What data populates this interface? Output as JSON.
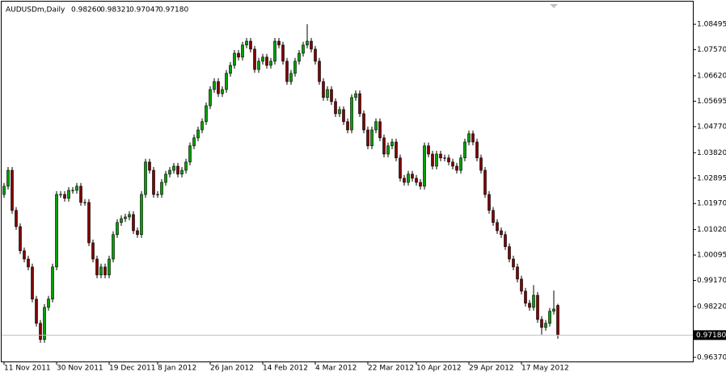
{
  "chart_data": {
    "type": "candlestick",
    "symbol": "AUDUSDm,Daily",
    "header_labels": [
      "0.98260",
      "0.98321",
      "0.97047",
      "0.97180"
    ],
    "up_color": "#00a000",
    "down_color": "#7f0000",
    "wick_color": "#000000",
    "ylim": [
      0.9622,
      1.0935
    ],
    "yticks": [
      1.08495,
      {
        "value": 1.0757,
        "label": "1.07570"
      },
      {
        "value": 1.0662,
        "label": "1.06620"
      },
      1.05695,
      {
        "value": 1.0477,
        "label": "1.04770"
      },
      {
        "value": 1.0382,
        "label": "1.03820"
      },
      1.02895,
      {
        "value": 1.0197,
        "label": "1.01970"
      },
      {
        "value": 1.0102,
        "label": "1.01020"
      },
      1.00095,
      {
        "value": 0.9917,
        "label": "0.99170"
      },
      {
        "value": 0.9822,
        "label": "0.98220"
      },
      {
        "value": 0.9637,
        "label": "0.96370"
      }
    ],
    "categories": [
      "11 Nov 2011",
      null,
      null,
      null,
      null,
      null,
      null,
      null,
      null,
      null,
      null,
      null,
      null,
      "30 Nov 2011",
      null,
      null,
      null,
      null,
      null,
      null,
      null,
      null,
      null,
      null,
      null,
      null,
      "19 Dec 2011",
      null,
      null,
      null,
      null,
      null,
      null,
      null,
      null,
      null,
      null,
      null,
      "8 Jan 2012",
      null,
      null,
      null,
      null,
      null,
      null,
      null,
      null,
      null,
      null,
      null,
      null,
      "26 Jan 2012",
      null,
      null,
      null,
      null,
      null,
      null,
      null,
      null,
      null,
      null,
      null,
      null,
      "14 Feb 2012",
      null,
      null,
      null,
      null,
      null,
      null,
      null,
      null,
      null,
      null,
      null,
      null,
      "4 Mar 2012",
      null,
      null,
      null,
      null,
      null,
      null,
      null,
      null,
      null,
      null,
      null,
      null,
      "22 Mar 2012",
      null,
      null,
      null,
      null,
      null,
      null,
      null,
      null,
      null,
      null,
      null,
      "10 Apr 2012",
      null,
      null,
      null,
      null,
      null,
      null,
      null,
      null,
      null,
      null,
      null,
      null,
      "29 Apr 2012",
      null,
      null,
      null,
      null,
      null,
      null,
      null,
      null,
      null,
      null,
      null,
      null,
      "17 May 2012",
      null,
      null,
      null,
      null,
      null,
      null,
      null,
      null,
      null
    ],
    "open": [
      1.023,
      1.026,
      1.0318,
      1.0172,
      1.0113,
      1.0025,
      0.9995,
      0.9966,
      0.9849,
      0.9761,
      0.9702,
      0.9819,
      0.9849,
      0.9966,
      1.023,
      1.023,
      1.0216,
      1.0245,
      1.0245,
      1.026,
      1.0201,
      1.0201,
      1.0054,
      0.9995,
      0.9937,
      0.9966,
      0.9937,
      0.9995,
      1.0084,
      1.0128,
      1.0142,
      1.0148,
      1.0157,
      1.0098,
      1.0084,
      1.023,
      1.0348,
      1.0318,
      1.023,
      1.023,
      1.0274,
      1.0304,
      1.0318,
      1.0333,
      1.0304,
      1.0318,
      1.0348,
      1.0407,
      1.0436,
      1.0465,
      1.0495,
      1.0553,
      1.0612,
      1.0641,
      1.0597,
      1.0612,
      1.0671,
      1.07,
      1.0744,
      1.073,
      1.0774,
      1.0788,
      1.0759,
      1.0685,
      1.0715,
      1.073,
      1.07,
      1.0715,
      1.0788,
      1.0774,
      1.0715,
      1.0641,
      1.0671,
      1.0715,
      1.0744,
      1.0774,
      1.0788,
      1.0759,
      1.0715,
      1.0641,
      1.0583,
      1.0612,
      1.0568,
      1.0524,
      1.0539,
      1.0495,
      1.0465,
      1.0583,
      1.0597,
      1.0524,
      1.0465,
      1.0407,
      1.0465,
      1.0495,
      1.0436,
      1.0377,
      1.0407,
      1.0421,
      1.0363,
      1.0289,
      1.0274,
      1.0304,
      1.0289,
      1.0274,
      1.026,
      1.0407,
      1.0377,
      1.0333,
      1.0377,
      1.0363,
      1.0363,
      1.0348,
      1.0333,
      1.0318,
      1.0363,
      1.0421,
      1.0451,
      1.0421,
      1.0363,
      1.0318,
      1.023,
      1.0172,
      1.0128,
      1.0098,
      1.0084,
      1.004,
      0.9995,
      0.9966,
      0.9922,
      0.9878,
      0.9834,
      0.9819,
      0.9863,
      0.9775,
      0.9746,
      0.9761,
      0.9805,
      0.9826
    ],
    "high": [
      1.0272,
      1.033,
      1.033,
      1.0184,
      1.0125,
      1.0037,
      1.0007,
      0.9978,
      0.9861,
      0.9773,
      0.9831,
      0.9861,
      0.9978,
      1.0242,
      1.0242,
      1.0242,
      1.0257,
      1.0257,
      1.0272,
      1.0272,
      1.0213,
      1.0213,
      1.0066,
      1.0007,
      0.9978,
      0.9978,
      1.0007,
      1.0096,
      1.014,
      1.0154,
      1.016,
      1.0169,
      1.0169,
      1.011,
      1.0242,
      1.036,
      1.036,
      1.033,
      1.0242,
      1.0286,
      1.0316,
      1.033,
      1.0345,
      1.0345,
      1.033,
      1.036,
      1.0419,
      1.0448,
      1.0477,
      1.0507,
      1.0565,
      1.0624,
      1.0653,
      1.0653,
      1.0624,
      1.0683,
      1.0712,
      1.0756,
      1.0756,
      1.0786,
      1.08,
      1.08,
      1.0771,
      1.0727,
      1.0742,
      1.0742,
      1.0727,
      1.08,
      1.08,
      1.0786,
      1.0727,
      1.0683,
      1.0727,
      1.0756,
      1.0786,
      1.085,
      1.08,
      1.0771,
      1.0727,
      1.0653,
      1.0624,
      1.0624,
      1.058,
      1.0551,
      1.0551,
      1.0507,
      1.0595,
      1.0609,
      1.0609,
      1.0536,
      1.0477,
      1.0477,
      1.0507,
      1.0507,
      1.0448,
      1.0419,
      1.0433,
      1.0433,
      1.0375,
      1.0301,
      1.0316,
      1.0316,
      1.0301,
      1.0286,
      1.0419,
      1.0419,
      1.0389,
      1.0389,
      1.0389,
      1.0375,
      1.0375,
      1.036,
      1.0345,
      1.0375,
      1.0433,
      1.0463,
      1.0463,
      1.0433,
      1.0375,
      1.033,
      1.0242,
      1.0184,
      1.014,
      1.011,
      1.0096,
      1.0052,
      1.0007,
      0.9978,
      0.9934,
      0.989,
      0.9846,
      0.99,
      0.9875,
      0.9787,
      0.9773,
      0.9817,
      0.988,
      0.98321
    ],
    "low": [
      1.0218,
      1.0248,
      1.016,
      1.0101,
      1.0013,
      0.9983,
      0.9954,
      0.9837,
      0.9749,
      0.969,
      0.969,
      0.9807,
      0.9837,
      0.9954,
      1.0218,
      1.0204,
      1.0204,
      1.0233,
      1.0233,
      1.0189,
      1.0189,
      1.0042,
      0.9983,
      0.9925,
      0.9925,
      0.9925,
      0.9925,
      0.9983,
      1.0072,
      1.0116,
      1.013,
      1.0136,
      1.0086,
      1.0072,
      1.0072,
      1.0218,
      1.0306,
      1.0218,
      1.0218,
      1.0218,
      1.0262,
      1.0292,
      1.0306,
      1.0292,
      1.0292,
      1.0306,
      1.0336,
      1.0395,
      1.0424,
      1.0453,
      1.0483,
      1.0541,
      1.06,
      1.0585,
      1.0585,
      1.06,
      1.0659,
      1.0688,
      1.0718,
      1.0718,
      1.0762,
      1.0747,
      1.0673,
      1.0673,
      1.0703,
      1.0688,
      1.0688,
      1.0703,
      1.0762,
      1.0703,
      1.0629,
      1.0629,
      1.0659,
      1.0703,
      1.0732,
      1.0762,
      1.0747,
      1.0703,
      1.0629,
      1.0571,
      1.0571,
      1.0556,
      1.0512,
      1.0512,
      1.0483,
      1.0453,
      1.0453,
      1.0571,
      1.0512,
      1.0453,
      1.0395,
      1.0395,
      1.0453,
      1.0424,
      1.0365,
      1.0365,
      1.0395,
      1.0351,
      1.0277,
      1.0262,
      1.0262,
      1.0277,
      1.0262,
      1.0248,
      1.0248,
      1.0365,
      1.0321,
      1.0321,
      1.0351,
      1.0351,
      1.0336,
      1.0321,
      1.0306,
      1.0306,
      1.0351,
      1.0409,
      1.0409,
      1.0351,
      1.0306,
      1.0218,
      1.016,
      1.0116,
      1.0086,
      1.0072,
      1.0028,
      0.9983,
      0.9954,
      0.991,
      0.9866,
      0.9822,
      0.9807,
      0.9807,
      0.9763,
      0.972,
      0.9734,
      0.9749,
      0.9793,
      0.97047
    ],
    "close": [
      1.026,
      1.0318,
      1.0172,
      1.0113,
      1.0025,
      0.9995,
      0.9966,
      0.9849,
      0.9761,
      0.9702,
      0.9819,
      0.9849,
      0.9966,
      1.023,
      1.023,
      1.0216,
      1.0245,
      1.0245,
      1.026,
      1.0201,
      1.0201,
      1.0054,
      0.9995,
      0.9937,
      0.9966,
      0.9937,
      0.9995,
      1.0084,
      1.0128,
      1.0142,
      1.0148,
      1.0157,
      1.0098,
      1.0084,
      1.023,
      1.0348,
      1.0318,
      1.023,
      1.023,
      1.0274,
      1.0304,
      1.0318,
      1.0333,
      1.0304,
      1.0318,
      1.0348,
      1.0407,
      1.0436,
      1.0465,
      1.0495,
      1.0553,
      1.0612,
      1.0641,
      1.0597,
      1.0612,
      1.0671,
      1.07,
      1.0744,
      1.073,
      1.0774,
      1.0788,
      1.0759,
      1.0685,
      1.0715,
      1.073,
      1.07,
      1.0715,
      1.0788,
      1.0774,
      1.0715,
      1.0641,
      1.0671,
      1.0715,
      1.0744,
      1.0774,
      1.0788,
      1.0759,
      1.0715,
      1.0641,
      1.0583,
      1.0612,
      1.0568,
      1.0524,
      1.0539,
      1.0495,
      1.0465,
      1.0583,
      1.0597,
      1.0524,
      1.0465,
      1.0407,
      1.0465,
      1.0495,
      1.0436,
      1.0377,
      1.0407,
      1.0421,
      1.0363,
      1.0289,
      1.0274,
      1.0304,
      1.0289,
      1.0274,
      1.026,
      1.0407,
      1.0377,
      1.0333,
      1.0377,
      1.0363,
      1.0363,
      1.0348,
      1.0333,
      1.0318,
      1.0363,
      1.0421,
      1.0451,
      1.0421,
      1.0363,
      1.0318,
      1.023,
      1.0172,
      1.0128,
      1.0098,
      1.0084,
      1.004,
      0.9995,
      0.9966,
      0.9922,
      0.9878,
      0.9834,
      0.9819,
      0.9863,
      0.9775,
      0.9746,
      0.9761,
      0.9805,
      0.9813,
      0.9718
    ]
  }
}
